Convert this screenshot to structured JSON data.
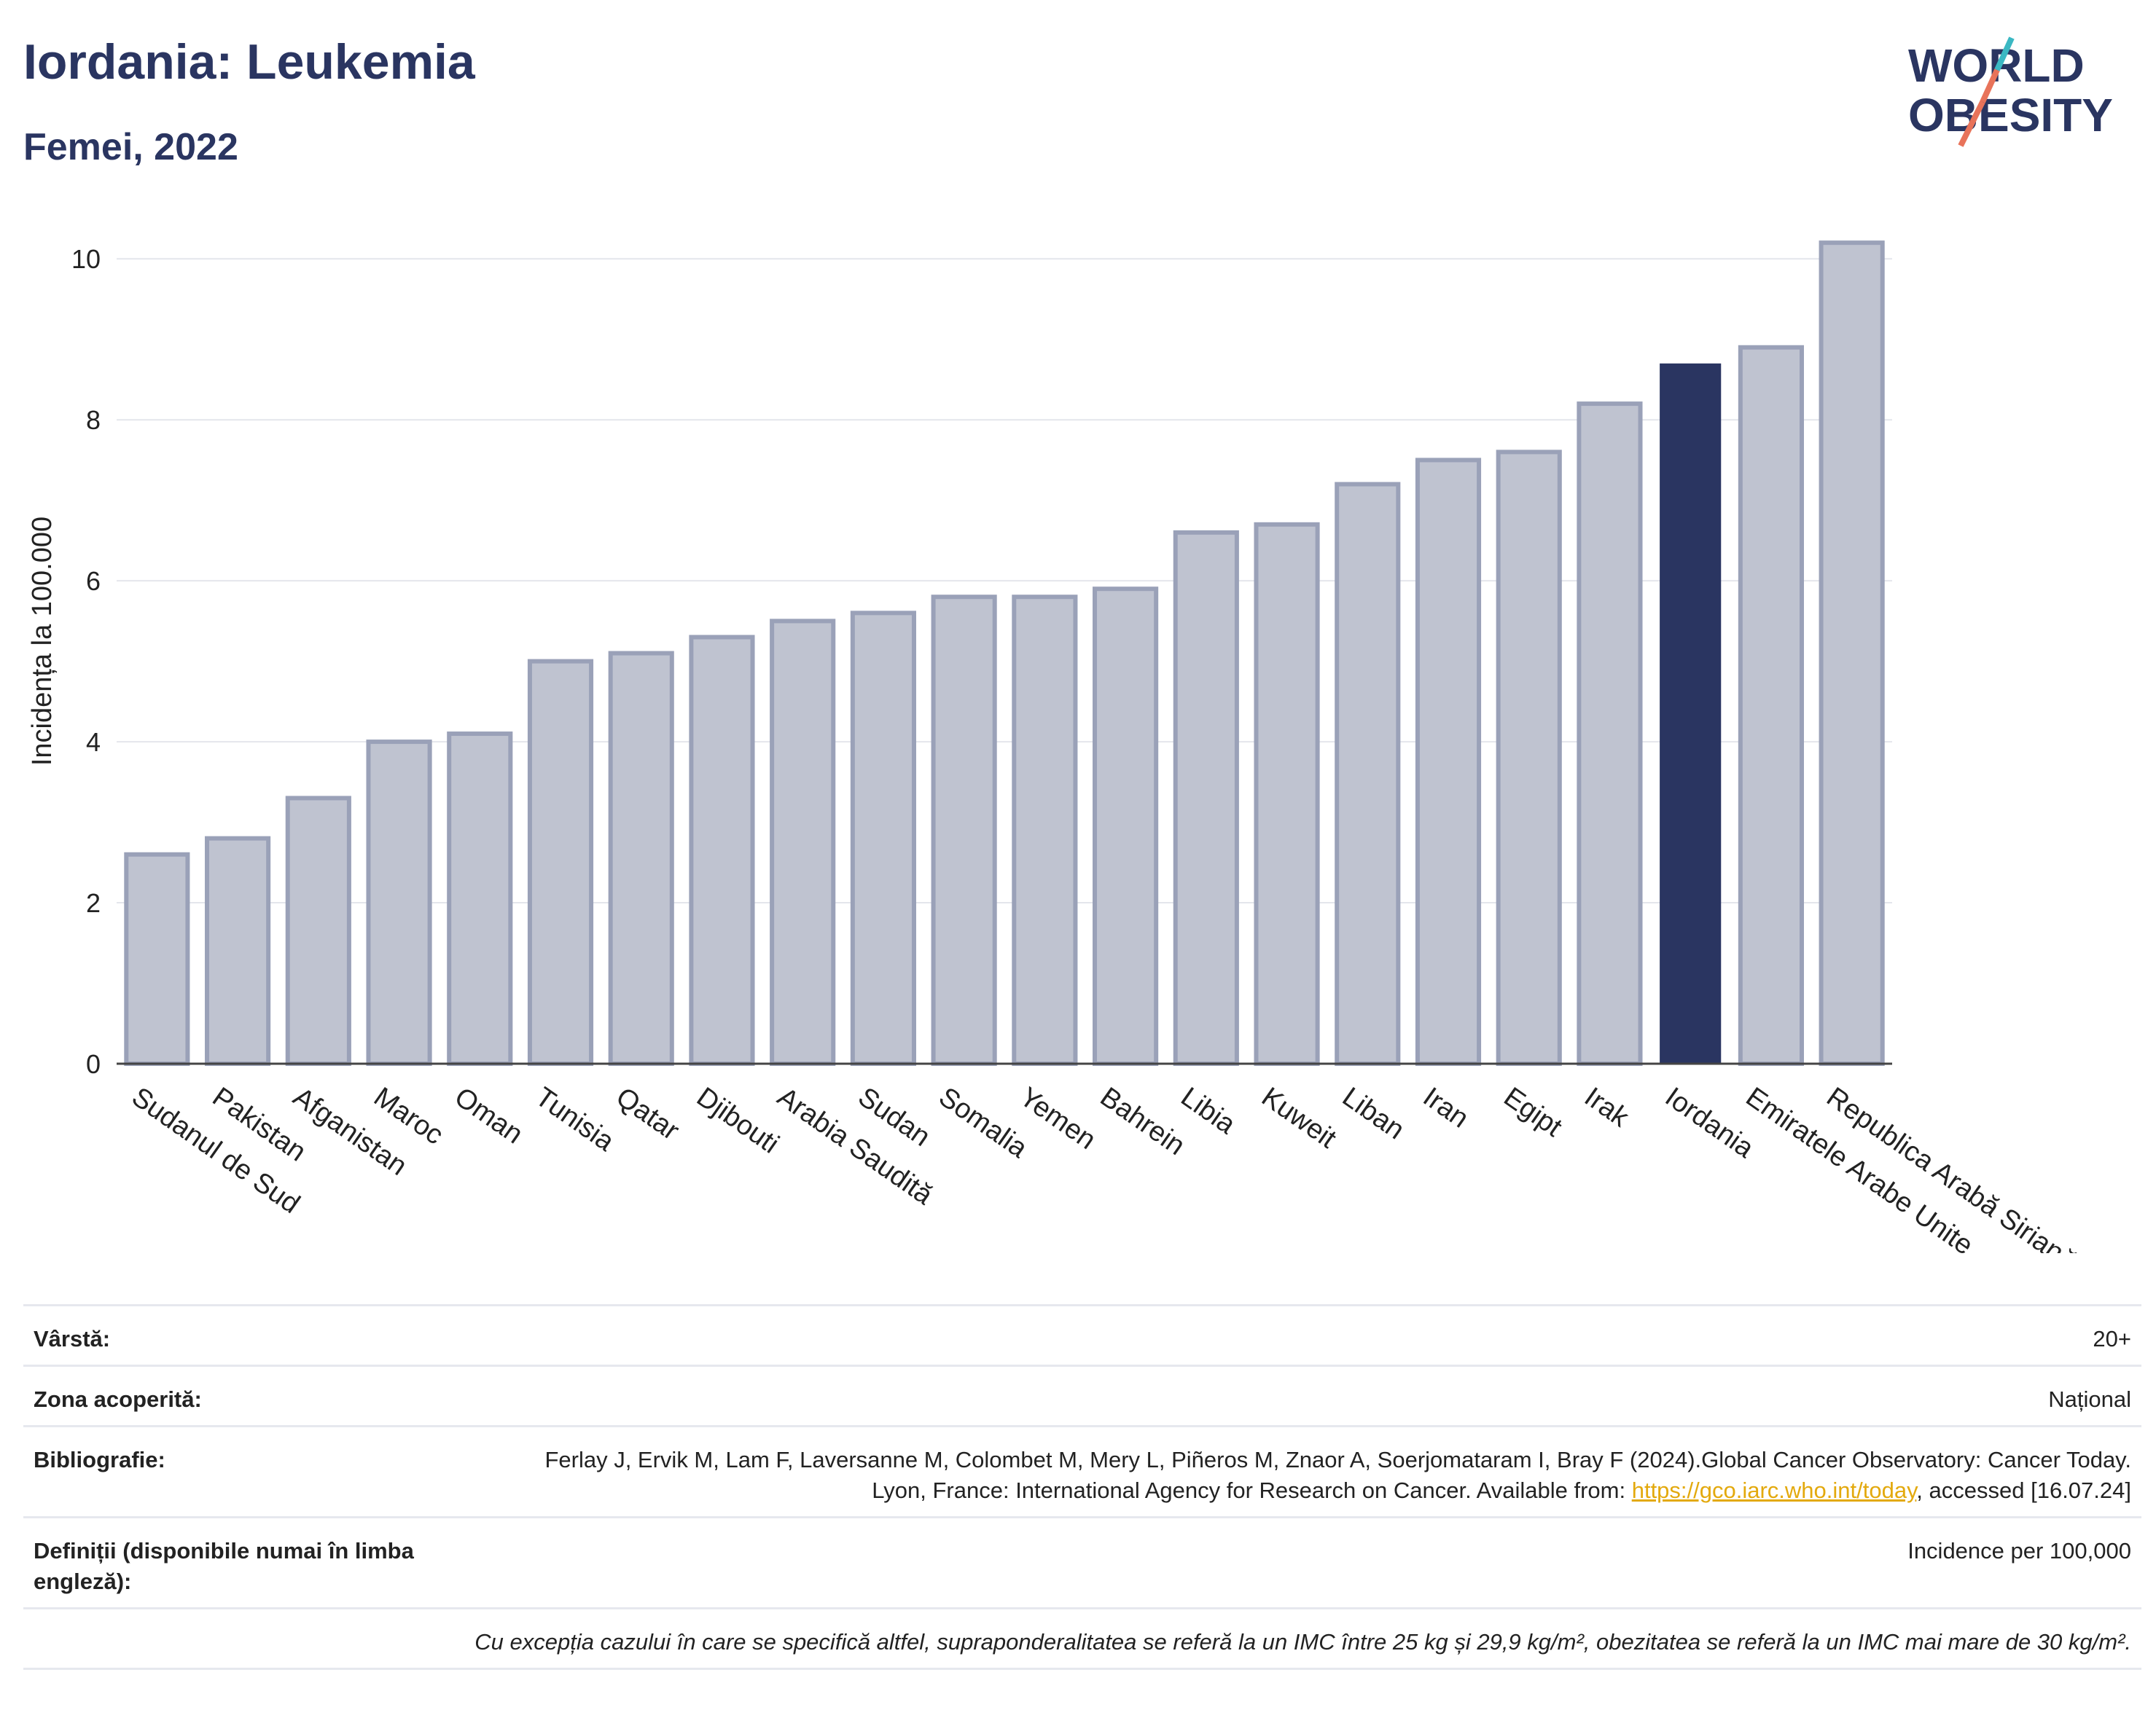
{
  "header": {
    "title": "Iordania: Leukemia",
    "subtitle": "Femei, 2022",
    "logo_line1": "WORLD",
    "logo_line2": "OBESITY"
  },
  "colors": {
    "highlight": "#2a3561",
    "bar": "#bfc3d0",
    "bar_outline": "#9aa1b8",
    "logo_slash_top": "#3bb8c3",
    "logo_slash_bottom": "#e8735a"
  },
  "chart_data": {
    "type": "bar",
    "title": "",
    "xlabel": "",
    "ylabel": "Incidența la 100.000",
    "ylim": [
      0,
      10.5
    ],
    "yticks": [
      0,
      2,
      4,
      6,
      8,
      10
    ],
    "grid": true,
    "highlight": "Iordania",
    "categories": [
      "Sudanul de Sud",
      "Pakistan",
      "Afganistan",
      "Maroc",
      "Oman",
      "Tunisia",
      "Qatar",
      "Djibouti",
      "Arabia Saudită",
      "Sudan",
      "Somalia",
      "Yemen",
      "Bahrein",
      "Libia",
      "Kuweit",
      "Liban",
      "Iran",
      "Egipt",
      "Irak",
      "Iordania",
      "Emiratele Arabe Unite",
      "Republica Arabă Siriană"
    ],
    "values": [
      2.6,
      2.8,
      3.3,
      4.0,
      4.1,
      5.0,
      5.1,
      5.3,
      5.5,
      5.6,
      5.8,
      5.8,
      5.9,
      6.6,
      6.7,
      7.2,
      7.5,
      7.6,
      8.2,
      8.7,
      8.9,
      10.2
    ]
  },
  "meta": {
    "age_label": "Vârstă:",
    "age_value": "20+",
    "coverage_label": "Zona acoperită:",
    "coverage_value": "Național",
    "biblio_label": "Bibliografie:",
    "biblio_text_1": "Ferlay J, Ervik M, Lam F, Laversanne M, Colombet M, Mery L, Piñeros M, Znaor A, Soerjomataram I, Bray F (2024).Global Cancer Observatory: Cancer Today. Lyon, France: International Agency for Research on Cancer. Available from: ",
    "biblio_link": "https://gco.iarc.who.int/today",
    "biblio_text_2": ", accessed [16.07.24]",
    "definitions_label": "Definiții (disponibile numai în limba engleză):",
    "definitions_value": "Incidence per 100,000",
    "note": "Cu excepția cazului în care se specifică altfel, supraponderalitatea se referă la un IMC între 25 kg și 29,9 kg/m², obezitatea se referă la un IMC mai mare de 30 kg/m²."
  }
}
